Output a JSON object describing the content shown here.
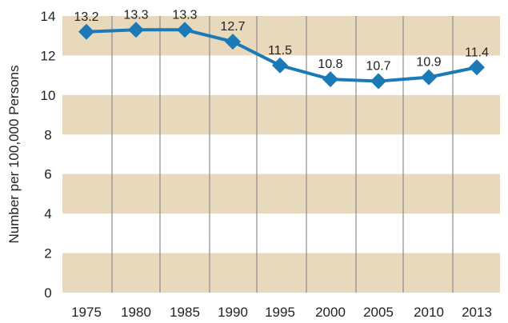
{
  "chart_data": {
    "type": "line",
    "title": "",
    "xlabel": "",
    "ylabel": "Number per 100,000 Persons",
    "ylim": [
      0,
      14
    ],
    "yticks": [
      0,
      2,
      4,
      6,
      8,
      10,
      12,
      14
    ],
    "grid": "alternating horizontal bands, vertical gridlines",
    "legend": "none",
    "categories": [
      "1975",
      "1980",
      "1985",
      "1990",
      "1995",
      "2000",
      "2005",
      "2010",
      "2013"
    ],
    "series": [
      {
        "values": [
          13.2,
          13.3,
          13.3,
          12.7,
          11.5,
          10.8,
          10.7,
          10.9,
          11.4
        ],
        "labels": [
          "13.2",
          "13.3",
          "13.3",
          "12.7",
          "11.5",
          "10.8",
          "10.7",
          "10.9",
          "11.4"
        ]
      }
    ],
    "colors": {
      "line": "#1b79b8",
      "band": "#e8d9bd",
      "gridline": "#8c8c8c"
    }
  }
}
